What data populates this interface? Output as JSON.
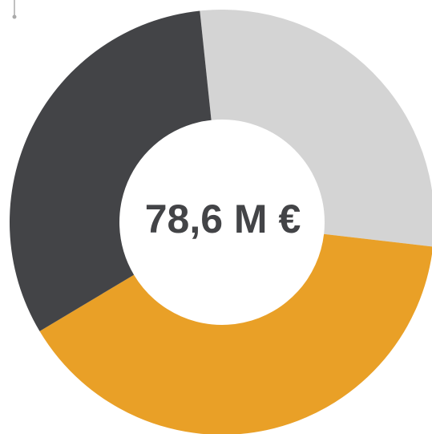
{
  "chart_data": {
    "type": "donut",
    "center_label": "78,6 M €",
    "values": [
      28.5,
      39.6,
      31.9
    ],
    "colors": [
      "#d4d4d4",
      "#e9a027",
      "#434447"
    ]
  }
}
